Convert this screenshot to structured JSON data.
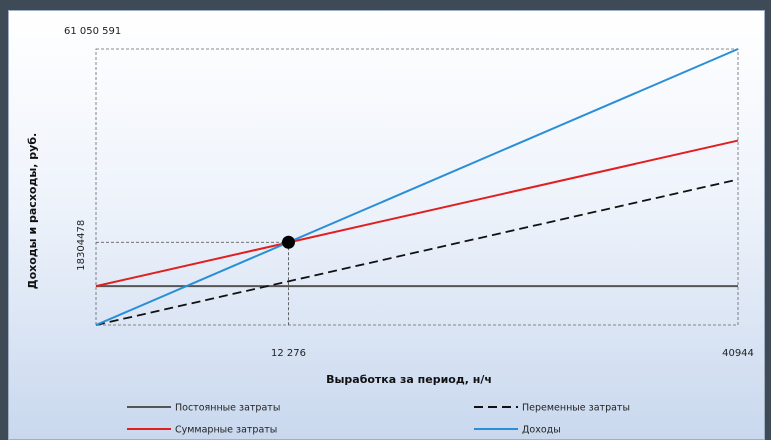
{
  "chart_data": {
    "type": "line",
    "title": "",
    "xlabel": "Выработка за период, н/ч",
    "ylabel": "Доходы и расходы, руб.",
    "xlim": [
      0,
      40944
    ],
    "ylim": [
      0,
      61050591
    ],
    "x_ticks": [
      {
        "value": 12276,
        "label": "12 276"
      },
      {
        "value": 40944,
        "label": "40944"
      }
    ],
    "y_ticks": [
      {
        "value": 18304478,
        "label": "18304478"
      },
      {
        "value": 61050591,
        "label": "61 050 591"
      }
    ],
    "break_even": {
      "x": 12276,
      "y": 18304478
    },
    "legend_position": "bottom",
    "grid": false,
    "series": [
      {
        "name": "Постоянные затраты",
        "color": "#555555",
        "dash": "solid",
        "x": [
          0,
          40944
        ],
        "y": [
          8600000,
          8600000
        ]
      },
      {
        "name": "Переменные затраты",
        "color": "#111111",
        "dash": "dashed",
        "x": [
          0,
          40944
        ],
        "y": [
          0,
          32200000
        ]
      },
      {
        "name": "Суммарные затраты",
        "color": "#e02020",
        "dash": "solid",
        "x": [
          0,
          40944
        ],
        "y": [
          8600000,
          40800000
        ]
      },
      {
        "name": "Доходы",
        "color": "#2a8fd4",
        "dash": "solid",
        "x": [
          0,
          40944
        ],
        "y": [
          0,
          61050591
        ]
      }
    ]
  }
}
